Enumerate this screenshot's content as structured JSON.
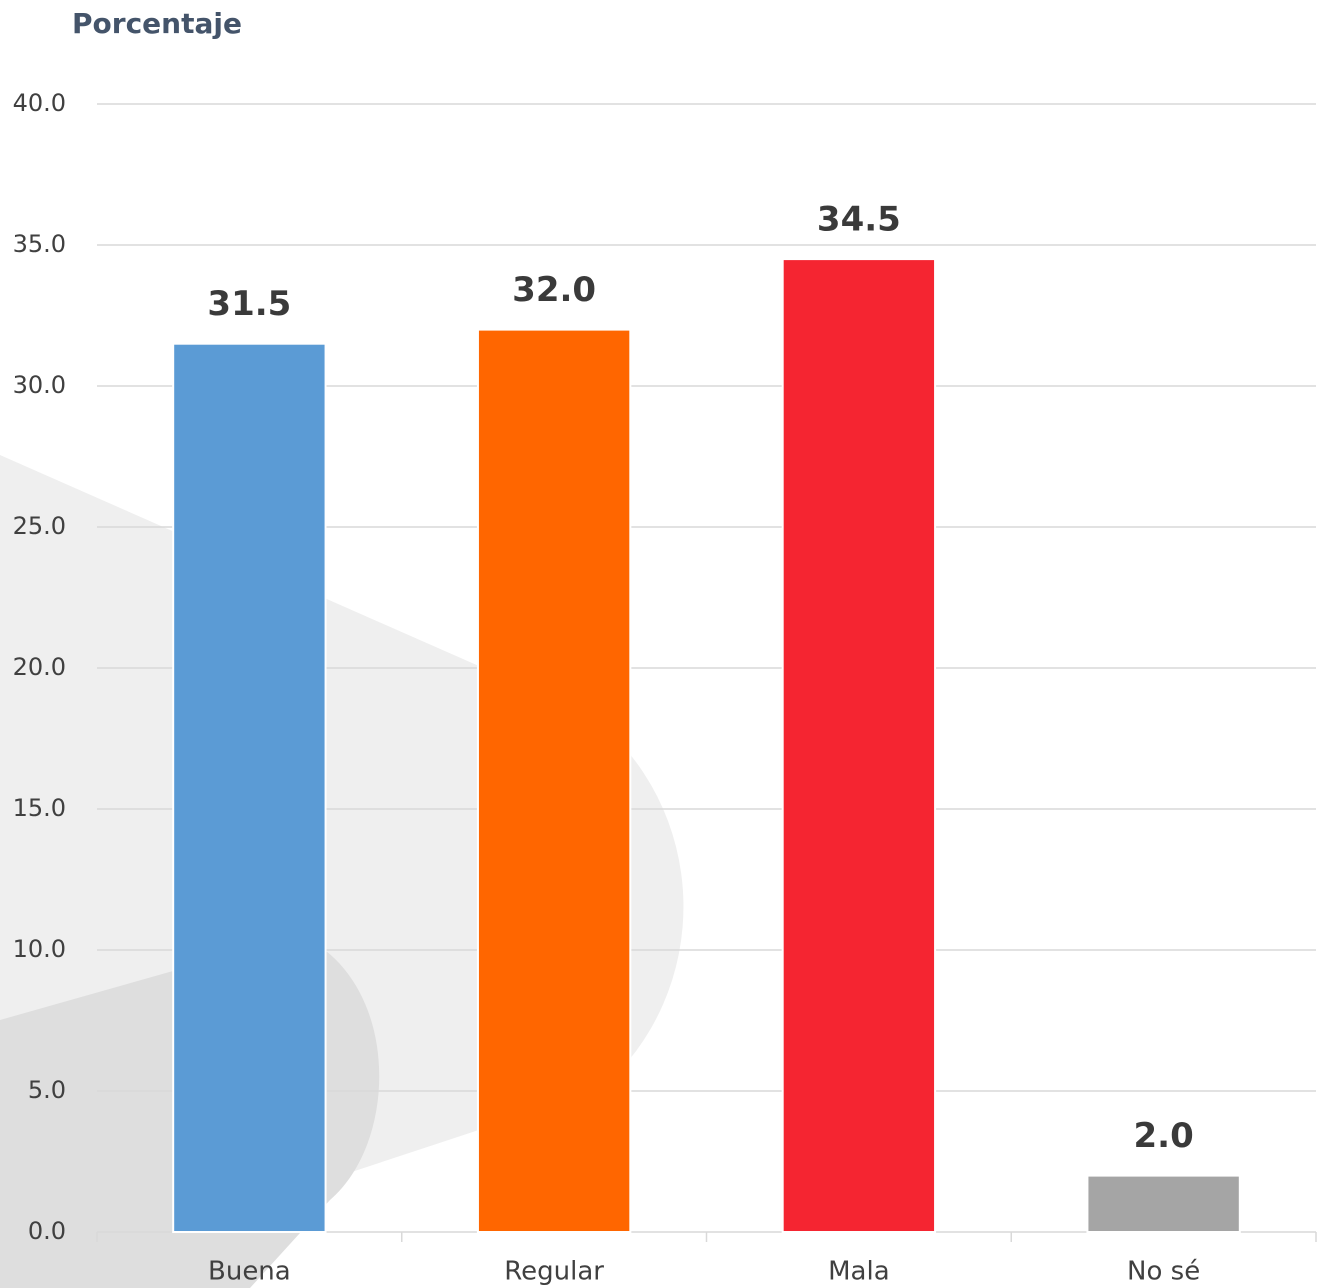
{
  "chart_data": {
    "type": "bar",
    "y_label": "Porcentaje",
    "categories": [
      "Buena",
      "Regular",
      "Mala",
      "No sé"
    ],
    "values": [
      31.5,
      32.0,
      34.5,
      2.0
    ],
    "value_labels": [
      "31.5",
      "32.0",
      "34.5",
      "2.0"
    ],
    "colors": [
      "#5b9bd5",
      "#ff6600",
      "#f52531",
      "#a5a5a5"
    ],
    "ylim": [
      0,
      40
    ],
    "yticks": [
      {
        "value": 0,
        "label": "0.0"
      },
      {
        "value": 5,
        "label": "5.0"
      },
      {
        "value": 10,
        "label": "10.0"
      },
      {
        "value": 15,
        "label": "15.0"
      },
      {
        "value": 20,
        "label": "20.0"
      },
      {
        "value": 25,
        "label": "25.0"
      },
      {
        "value": 30,
        "label": "30.0"
      },
      {
        "value": 35,
        "label": "35.0"
      },
      {
        "value": 40,
        "label": "40.0"
      }
    ],
    "grid": true
  }
}
